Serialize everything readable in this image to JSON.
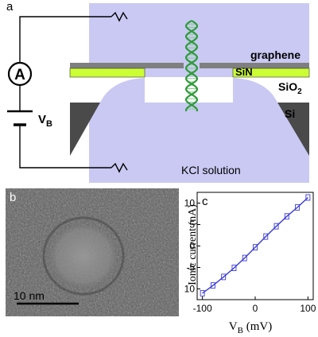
{
  "panel_a": {
    "label": "a",
    "ammeter_symbol": "A",
    "voltage_label": {
      "main": "V",
      "sub": "B"
    },
    "layers": {
      "graphene": "graphene",
      "sin": "SiN",
      "sio2": {
        "main": "SiO",
        "sub": "2"
      },
      "si": "Si"
    },
    "solution": "KCl solution",
    "colors": {
      "solution": "#c9c9f3",
      "graphene": "#7f7f7f",
      "sin": "#ccff33",
      "si": "#4a4a4a",
      "dna_strand": "#2e9a3a"
    }
  },
  "panel_b": {
    "label": "b",
    "scale_bar": "10 nm"
  },
  "panel_c": {
    "label": "c"
  },
  "chart_data": {
    "type": "line",
    "xlabel": {
      "main": "V",
      "sub": "B",
      "unit": " (mV)"
    },
    "ylabel": "Ionic current (nA)",
    "xlim": [
      -110,
      110
    ],
    "ylim": [
      -12.5,
      12.5
    ],
    "xticks": [
      -100,
      0,
      100
    ],
    "yticks": [
      -10,
      -5,
      0,
      5,
      10
    ],
    "grid": false,
    "series": [
      {
        "color": "#3a3ad6",
        "x": [
          -100,
          -80,
          -60,
          -40,
          -20,
          0,
          20,
          40,
          60,
          80,
          100
        ],
        "y": [
          -11.0,
          -9.2,
          -7.2,
          -5.1,
          -2.8,
          -0.3,
          2.2,
          4.6,
          6.9,
          9.0,
          11.3
        ]
      }
    ]
  }
}
